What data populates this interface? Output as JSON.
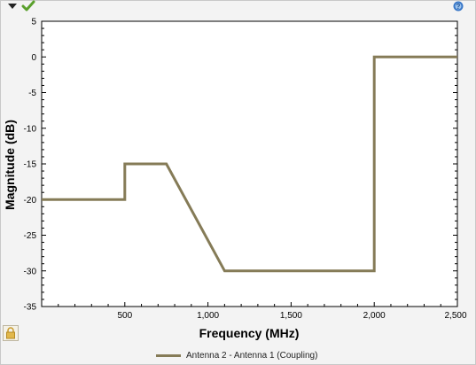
{
  "toolbar": {
    "menu_icon": "triangle-down-icon",
    "check_icon": "checkmark-icon",
    "help_icon": "help-icon",
    "lock_icon": "lock-icon"
  },
  "colors": {
    "series": "#857b57",
    "plot_bg": "#ffffff",
    "frame_bg": "#f3f3f3",
    "check": "#5aa02c",
    "help": "#3a78c8"
  },
  "chart_data": {
    "type": "line",
    "title": "",
    "xlabel": "Frequency (MHz)",
    "ylabel": "Magnitude (dB)",
    "xlim": [
      0,
      2500
    ],
    "ylim": [
      -35,
      5
    ],
    "xticks": [
      500,
      1000,
      1500,
      2000,
      2500
    ],
    "xtick_labels": [
      "500",
      "1,000",
      "1,500",
      "2,000",
      "2,500"
    ],
    "yticks": [
      5,
      0,
      -5,
      -10,
      -15,
      -20,
      -25,
      -30,
      -35
    ],
    "ytick_labels": [
      "5",
      "0",
      "-5",
      "-10",
      "-15",
      "-20",
      "-25",
      "-30",
      "-35"
    ],
    "grid": false,
    "legend_position": "bottom",
    "series": [
      {
        "name": "Antenna 2 - Antenna 1 (Coupling)",
        "x": [
          0,
          500,
          500,
          750,
          1100,
          2000,
          2000,
          2500
        ],
        "y": [
          -20,
          -20,
          -15,
          -15,
          -30,
          -30,
          0,
          0
        ]
      }
    ]
  }
}
